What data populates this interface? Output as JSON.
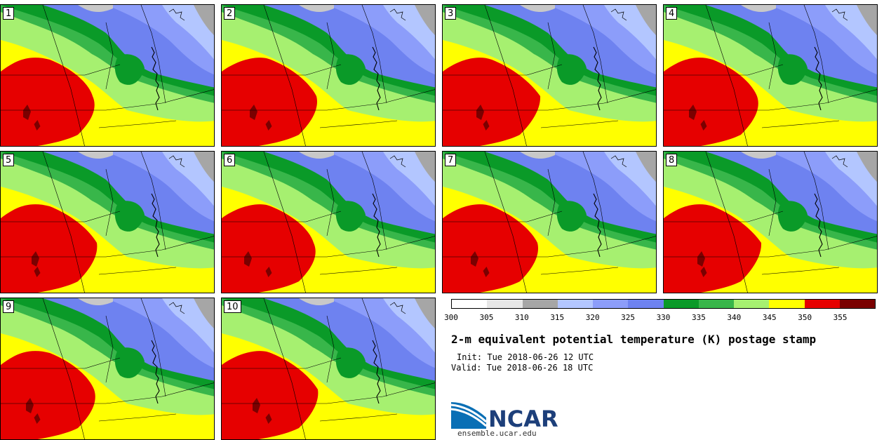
{
  "panels": [
    {
      "label": "1"
    },
    {
      "label": "2"
    },
    {
      "label": "3"
    },
    {
      "label": "4"
    },
    {
      "label": "5"
    },
    {
      "label": "6"
    },
    {
      "label": "7"
    },
    {
      "label": "8"
    },
    {
      "label": "9"
    },
    {
      "label": "10"
    }
  ],
  "colorbar": {
    "ticks": [
      "300",
      "305",
      "310",
      "315",
      "320",
      "325",
      "330",
      "335",
      "340",
      "345",
      "350",
      "355"
    ],
    "colors": [
      "#ffffff",
      "#e6e6e6",
      "#a6a6a6",
      "#b3c6ff",
      "#8c9dfa",
      "#6e82f0",
      "#0a9a28",
      "#38b64a",
      "#a6f070",
      "#ffff00",
      "#e60000",
      "#7a0000"
    ]
  },
  "title": "2-m equivalent potential temperature (K) postage stamp",
  "init": "Init: Tue 2018-06-26 12 UTC",
  "valid": "Valid: Tue 2018-06-26 18 UTC",
  "logo": {
    "text": "NCAR",
    "url": "ensemble.ucar.edu"
  }
}
